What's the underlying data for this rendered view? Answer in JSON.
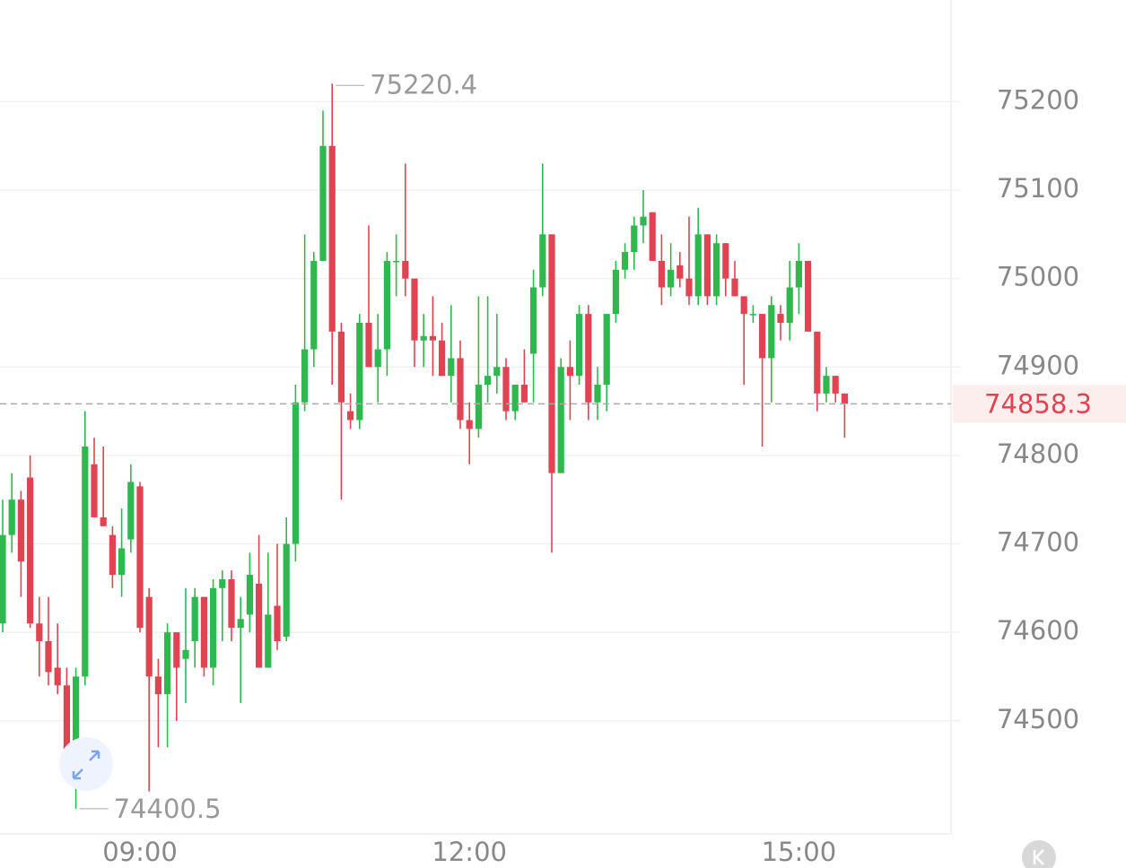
{
  "chart_data": {
    "type": "candlestick",
    "categories": [
      null,
      null,
      null,
      null,
      null,
      null,
      null,
      null,
      null,
      null,
      null,
      null,
      null,
      null,
      null,
      "09:00",
      null,
      null,
      null,
      null,
      null,
      null,
      null,
      null,
      null,
      null,
      null,
      null,
      null,
      null,
      null,
      null,
      null,
      null,
      null,
      null,
      null,
      null,
      null,
      null,
      null,
      null,
      null,
      null,
      null,
      null,
      null,
      null,
      null,
      null,
      null,
      "12:00",
      null,
      null,
      null,
      null,
      null,
      null,
      null,
      null,
      null,
      null,
      null,
      null,
      null,
      null,
      null,
      null,
      null,
      null,
      null,
      null,
      null,
      null,
      null,
      null,
      null,
      null,
      null,
      null,
      null,
      null,
      null,
      null,
      null,
      null,
      null,
      "15:00",
      null,
      null,
      null,
      null,
      null
    ],
    "open": [
      74610,
      74710,
      74750,
      74775,
      74610,
      74590,
      74560,
      74540,
      74460,
      74550,
      74790,
      74730,
      74710,
      74665,
      74705,
      74765,
      74640,
      74550,
      74530,
      74600,
      74570,
      74590,
      74640,
      74560,
      74650,
      74660,
      74605,
      74620,
      74655,
      74560,
      74630,
      74595,
      74700,
      74860,
      74920,
      75020,
      75150,
      74940,
      74850,
      74840,
      74950,
      74900,
      74920,
      75020,
      75020,
      75000,
      74930,
      74935,
      74930,
      74890,
      74910,
      74840,
      74830,
      74880,
      74890,
      74900,
      74850,
      74880,
      74915,
      74990,
      75050,
      74780,
      74900,
      74890,
      74960,
      74860,
      74880,
      74960,
      75010,
      75030,
      75060,
      75075,
      75020,
      74990,
      75015,
      75000,
      74980,
      75050,
      74980,
      75040,
      75000,
      74980,
      74960,
      74960,
      74910,
      74960,
      74950,
      74990,
      75020,
      74940,
      74870,
      74890,
      74870
    ],
    "high": [
      74750,
      74780,
      74760,
      74800,
      74640,
      74640,
      74610,
      74560,
      74560,
      74850,
      74820,
      74810,
      74720,
      74740,
      74790,
      74770,
      74650,
      74570,
      74610,
      74600,
      74650,
      74650,
      74640,
      74660,
      74670,
      74670,
      74640,
      74690,
      74710,
      74690,
      74700,
      74730,
      74880,
      75050,
      75030,
      75190,
      75220.4,
      74950,
      74870,
      74960,
      75060,
      74960,
      75030,
      75050,
      75130,
      75000,
      74960,
      74980,
      74950,
      74970,
      74930,
      74860,
      74980,
      74980,
      74960,
      74910,
      74880,
      74920,
      75010,
      75130,
      75050,
      74910,
      74930,
      74970,
      74970,
      74900,
      74960,
      75020,
      75040,
      75070,
      75100,
      75075,
      75050,
      75040,
      75030,
      75070,
      75080,
      75050,
      75050,
      75040,
      75020,
      74980,
      74970,
      74960,
      74980,
      74970,
      75020,
      75040,
      75020,
      74940,
      74900,
      74890,
      74870
    ],
    "low": [
      74600,
      74690,
      74640,
      74605,
      74550,
      74540,
      74530,
      74440,
      74400.5,
      74540,
      74730,
      74720,
      74650,
      74640,
      74690,
      74600,
      74420,
      74470,
      74470,
      74500,
      74520,
      74560,
      74550,
      74540,
      74590,
      74590,
      74520,
      74600,
      74560,
      74560,
      74580,
      74590,
      74680,
      74850,
      74900,
      75020,
      74880,
      74750,
      74830,
      74830,
      74900,
      74860,
      74890,
      74980,
      74980,
      74900,
      74900,
      74890,
      74890,
      74860,
      74830,
      74790,
      74820,
      74860,
      74870,
      74840,
      74840,
      74860,
      74860,
      74980,
      74690,
      74780,
      74840,
      74880,
      74840,
      74840,
      74850,
      74950,
      75000,
      75010,
      75040,
      75020,
      74970,
      74980,
      74990,
      74970,
      74970,
      74970,
      74970,
      74980,
      74980,
      74880,
      74950,
      74810,
      74860,
      74930,
      74930,
      74960,
      74940,
      74850,
      74860,
      74860,
      74820
    ],
    "close": [
      74710,
      74750,
      74680,
      74610,
      74590,
      74555,
      74540,
      74460,
      74550,
      74810,
      74730,
      74720,
      74665,
      74695,
      74770,
      74605,
      74550,
      74530,
      74600,
      74560,
      74580,
      74640,
      74560,
      74650,
      74660,
      74605,
      74615,
      74665,
      74560,
      74620,
      74590,
      74700,
      74860,
      74920,
      75020,
      75150,
      74940,
      74860,
      74840,
      74950,
      74900,
      74920,
      75020,
      75020,
      75000,
      74930,
      74935,
      74930,
      74890,
      74910,
      74840,
      74830,
      74880,
      74890,
      74900,
      74850,
      74880,
      74860,
      74990,
      75050,
      74780,
      74900,
      74890,
      74960,
      74860,
      74880,
      74960,
      75010,
      75030,
      75060,
      75070,
      75020,
      74990,
      75010,
      75000,
      74980,
      75050,
      74980,
      75040,
      75000,
      74980,
      74960,
      74960,
      74910,
      74970,
      74950,
      74990,
      75020,
      74940,
      74870,
      74890,
      74870,
      74858.3
    ],
    "up_color": "#2fb84d",
    "down_color": "#e04452",
    "ylim": [
      74372,
      75315
    ],
    "yticks": [
      74500,
      74600,
      74700,
      74800,
      74900,
      75000,
      75100,
      75200
    ],
    "grid": true
  }
}
